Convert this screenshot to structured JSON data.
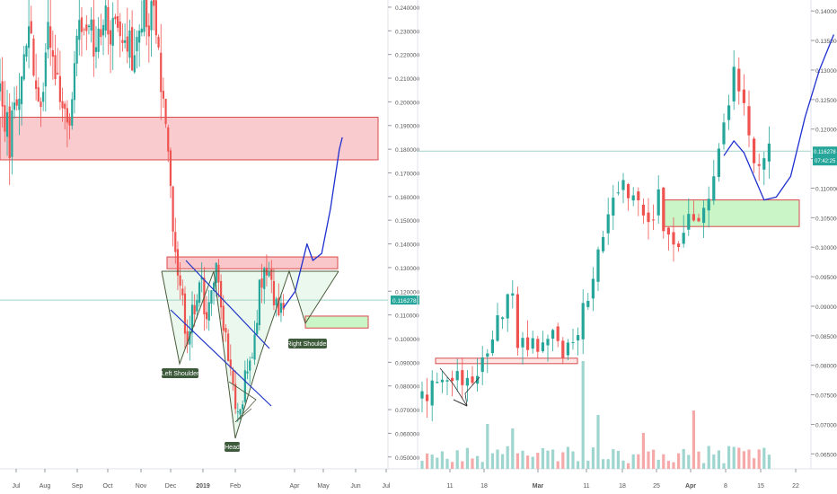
{
  "colors": {
    "up": "#26a69a",
    "down": "#ef5350",
    "projection": "#1e2fcf",
    "zone_red_fill": "#f7b9bd",
    "zone_red_edge": "#d94a4a",
    "zone_green_fill": "#c9f5c7",
    "zone_green_edge": "#d94a4a",
    "price_line": "#9fd4c9",
    "price_tag": "#26a69a",
    "pattern": "#4a5a3a",
    "trendline": "#2136c8",
    "vol_up": "#9ed6cf",
    "vol_down": "#f5a9a9"
  },
  "chart_data": [
    {
      "type": "candlestick",
      "panel": "left",
      "timeframe_note": "daily candles, mid-2018 to mid-2019",
      "x_ticks": [
        "Jul",
        "Aug",
        "Sep",
        "Oct",
        "Nov",
        "Dec",
        "2019",
        "Feb",
        "Apr",
        "May",
        "Jun",
        "Jul"
      ],
      "y_ticks": [
        "0.240000",
        "0.230000",
        "0.220000",
        "0.210000",
        "0.200000",
        "0.190000",
        "0.180000",
        "0.170000",
        "0.160000",
        "0.150000",
        "0.140000",
        "0.130000",
        "0.120000",
        "0.110000",
        "0.100000",
        "0.090000",
        "0.080000",
        "0.070000",
        "0.060000",
        "0.050000"
      ],
      "ylim": [
        0.0465,
        0.2415
      ],
      "last_price": "0.116278",
      "series_close_path": [
        [
          0,
          0.205
        ],
        [
          4,
          0.185
        ],
        [
          8,
          0.21
        ],
        [
          12,
          0.23
        ],
        [
          16,
          0.2
        ],
        [
          20,
          0.225
        ],
        [
          24,
          0.205
        ],
        [
          28,
          0.19
        ],
        [
          32,
          0.225
        ],
        [
          36,
          0.232
        ],
        [
          40,
          0.22
        ],
        [
          44,
          0.236
        ],
        [
          48,
          0.228
        ],
        [
          52,
          0.232
        ],
        [
          56,
          0.215
        ],
        [
          60,
          0.236
        ],
        [
          64,
          0.233
        ],
        [
          68,
          0.2
        ],
        [
          70,
          0.175
        ],
        [
          72,
          0.145
        ],
        [
          74,
          0.13
        ],
        [
          76,
          0.115
        ],
        [
          78,
          0.098
        ],
        [
          80,
          0.112
        ],
        [
          82,
          0.118
        ],
        [
          84,
          0.122
        ],
        [
          86,
          0.105
        ],
        [
          88,
          0.118
        ],
        [
          90,
          0.128
        ],
        [
          92,
          0.115
        ],
        [
          94,
          0.1
        ],
        [
          96,
          0.088
        ],
        [
          98,
          0.075
        ],
        [
          100,
          0.07
        ],
        [
          102,
          0.082
        ],
        [
          104,
          0.09
        ],
        [
          106,
          0.103
        ],
        [
          108,
          0.12
        ],
        [
          110,
          0.128
        ],
        [
          112,
          0.124
        ],
        [
          114,
          0.117
        ],
        [
          116,
          0.113
        ],
        [
          118,
          0.116
        ]
      ],
      "resistance_zone": {
        "y_top": 0.1935,
        "y_bottom": 0.1755
      },
      "neckline_zone": {
        "y_top": 0.1345,
        "y_bottom": 0.1295
      },
      "target_zone": {
        "y_top": 0.1095,
        "y_bottom": 0.1075
      },
      "pattern_label_left": "Left Shoulder",
      "pattern_label_head": "Head",
      "pattern_label_right": "Right Shoulder",
      "projection_path": [
        [
          118,
          0.113
        ],
        [
          122,
          0.12
        ],
        [
          126,
          0.14
        ],
        [
          128,
          0.133
        ],
        [
          131,
          0.136
        ],
        [
          134,
          0.155
        ],
        [
          137,
          0.18
        ],
        [
          138,
          0.185
        ]
      ]
    },
    {
      "type": "candlestick",
      "panel": "right",
      "timeframe_note": "daily candles, Feb to Apr 2019",
      "x_ticks": [
        "11",
        "18",
        "Mar",
        "11",
        "18",
        "25",
        "Apr",
        "8",
        "15",
        "22"
      ],
      "y_ticks": [
        "0.140000",
        "0.135000",
        "0.130000",
        "0.125000",
        "0.120000",
        "0.115000",
        "0.110000",
        "0.105000",
        "0.100000",
        "0.095000",
        "0.090000",
        "0.085000",
        "0.080000",
        "0.075000",
        "0.070000",
        "0.065000"
      ],
      "ylim": [
        0.06125,
        0.14125
      ],
      "last_price": "0.116278",
      "price_countdown": "07:42:25",
      "support_zone": {
        "y_top": 0.108,
        "y_bottom": 0.1035
      },
      "base_zone": {
        "y_top": 0.0812,
        "y_bottom": 0.0802
      },
      "projection_path": [
        [
          60,
          0.1155
        ],
        [
          62,
          0.118
        ],
        [
          64,
          0.116
        ],
        [
          66,
          0.112
        ],
        [
          68,
          0.108
        ],
        [
          70,
          0.1085
        ],
        [
          72,
          0.112
        ],
        [
          74,
          0.122
        ],
        [
          76,
          0.13
        ],
        [
          78,
          0.136
        ]
      ]
    }
  ]
}
